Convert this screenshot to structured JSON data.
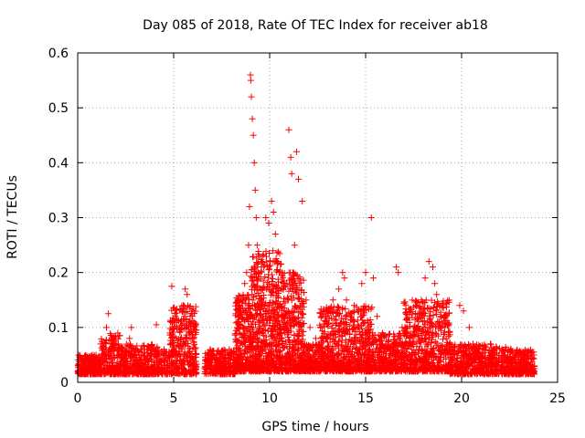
{
  "chart_data": {
    "type": "scatter",
    "title": "Day 085 of 2018, Rate Of TEC Index for receiver ab18",
    "xlabel": "GPS time / hours",
    "ylabel": "ROTI / TECUs",
    "xlim": [
      0,
      25
    ],
    "ylim": [
      0,
      0.6
    ],
    "x_ticks": [
      "0",
      "5",
      "10",
      "15",
      "20",
      "25"
    ],
    "y_ticks": [
      "0",
      "0.1",
      "0.2",
      "0.3",
      "0.4",
      "0.5",
      "0.6"
    ],
    "grid": true,
    "marker": "+",
    "marker_color": "#ff0000",
    "series": [
      {
        "name": "ROTI",
        "x": [
          0.05,
          0.4,
          0.8,
          1.2,
          1.5,
          1.6,
          1.8,
          2.3,
          2.7,
          2.8,
          3.2,
          3.6,
          4.1,
          4.5,
          4.8,
          4.9,
          5.1,
          5.3,
          5.5,
          5.6,
          5.7,
          5.8,
          5.9,
          6.1,
          6.8,
          7.0,
          7.4,
          7.9,
          8.3,
          8.5,
          8.7,
          8.8,
          8.9,
          8.95,
          9.0,
          9.02,
          9.05,
          9.1,
          9.15,
          9.2,
          9.25,
          9.3,
          9.35,
          9.4,
          9.6,
          9.8,
          9.95,
          10.1,
          10.2,
          10.3,
          10.4,
          10.5,
          10.6,
          10.7,
          10.8,
          10.9,
          11.0,
          11.1,
          11.15,
          11.2,
          11.3,
          11.4,
          11.5,
          11.7,
          11.9,
          12.1,
          12.4,
          12.7,
          13.0,
          13.3,
          13.6,
          13.8,
          13.9,
          14.0,
          14.2,
          14.4,
          14.6,
          14.8,
          15.0,
          15.1,
          15.2,
          15.3,
          15.4,
          15.6,
          16.0,
          16.4,
          16.6,
          16.7,
          16.9,
          17.3,
          17.6,
          17.9,
          18.1,
          18.3,
          18.5,
          18.6,
          18.7,
          18.9,
          19.2,
          19.5,
          19.9,
          20.1,
          20.4,
          20.6,
          20.9,
          21.2,
          21.5,
          21.8,
          22.1,
          22.4,
          22.8,
          23.1,
          23.4,
          23.7
        ],
        "y": [
          0.03,
          0.035,
          0.04,
          0.07,
          0.1,
          0.125,
          0.06,
          0.045,
          0.08,
          0.1,
          0.05,
          0.06,
          0.105,
          0.06,
          0.09,
          0.175,
          0.12,
          0.1,
          0.14,
          0.17,
          0.16,
          0.11,
          0.08,
          0.06,
          0.03,
          0.04,
          0.05,
          0.06,
          0.11,
          0.15,
          0.18,
          0.2,
          0.25,
          0.32,
          0.56,
          0.55,
          0.52,
          0.48,
          0.45,
          0.4,
          0.35,
          0.3,
          0.25,
          0.2,
          0.22,
          0.3,
          0.29,
          0.33,
          0.31,
          0.27,
          0.22,
          0.2,
          0.17,
          0.12,
          0.09,
          0.18,
          0.46,
          0.41,
          0.38,
          0.2,
          0.25,
          0.42,
          0.37,
          0.33,
          0.15,
          0.1,
          0.08,
          0.07,
          0.12,
          0.15,
          0.17,
          0.2,
          0.19,
          0.15,
          0.12,
          0.14,
          0.1,
          0.18,
          0.2,
          0.1,
          0.06,
          0.3,
          0.19,
          0.12,
          0.06,
          0.05,
          0.21,
          0.2,
          0.1,
          0.08,
          0.14,
          0.15,
          0.19,
          0.22,
          0.21,
          0.18,
          0.16,
          0.12,
          0.08,
          0.06,
          0.14,
          0.13,
          0.1,
          0.07,
          0.05,
          0.06,
          0.07,
          0.065,
          0.06,
          0.055,
          0.05,
          0.04,
          0.035,
          0.03
        ]
      }
    ],
    "clusters": [
      {
        "x": [
          0.0,
          1.2
        ],
        "y": [
          0.015,
          0.05
        ],
        "n": 260
      },
      {
        "x": [
          1.2,
          2.2
        ],
        "y": [
          0.015,
          0.09
        ],
        "n": 200
      },
      {
        "x": [
          2.2,
          4.2
        ],
        "y": [
          0.015,
          0.07
        ],
        "n": 380
      },
      {
        "x": [
          4.2,
          4.8
        ],
        "y": [
          0.015,
          0.06
        ],
        "n": 80
      },
      {
        "x": [
          4.8,
          6.2
        ],
        "y": [
          0.015,
          0.14
        ],
        "n": 320
      },
      {
        "x": [
          6.6,
          8.2
        ],
        "y": [
          0.015,
          0.06
        ],
        "n": 260
      },
      {
        "x": [
          8.2,
          9.0
        ],
        "y": [
          0.02,
          0.16
        ],
        "n": 260
      },
      {
        "x": [
          9.0,
          10.6
        ],
        "y": [
          0.02,
          0.24
        ],
        "n": 600
      },
      {
        "x": [
          10.6,
          11.8
        ],
        "y": [
          0.02,
          0.2
        ],
        "n": 380
      },
      {
        "x": [
          11.8,
          12.6
        ],
        "y": [
          0.02,
          0.07
        ],
        "n": 160
      },
      {
        "x": [
          12.6,
          15.4
        ],
        "y": [
          0.02,
          0.14
        ],
        "n": 700
      },
      {
        "x": [
          15.4,
          17.0
        ],
        "y": [
          0.02,
          0.09
        ],
        "n": 300
      },
      {
        "x": [
          17.0,
          19.4
        ],
        "y": [
          0.02,
          0.15
        ],
        "n": 560
      },
      {
        "x": [
          19.4,
          20.6
        ],
        "y": [
          0.015,
          0.07
        ],
        "n": 200
      },
      {
        "x": [
          20.6,
          22.6
        ],
        "y": [
          0.015,
          0.07
        ],
        "n": 340
      },
      {
        "x": [
          22.6,
          23.8
        ],
        "y": [
          0.015,
          0.06
        ],
        "n": 220
      }
    ]
  }
}
